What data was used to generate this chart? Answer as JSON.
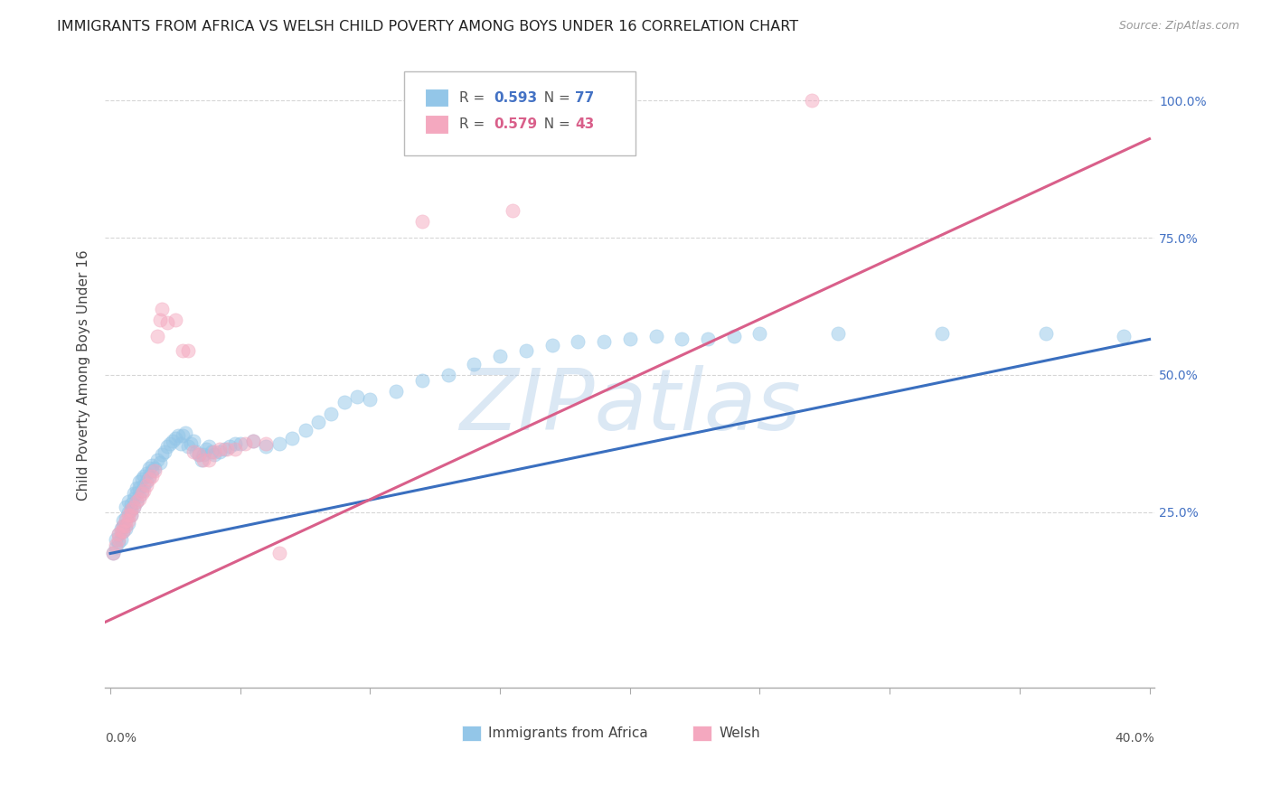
{
  "title": "IMMIGRANTS FROM AFRICA VS WELSH CHILD POVERTY AMONG BOYS UNDER 16 CORRELATION CHART",
  "source": "Source: ZipAtlas.com",
  "ylabel": "Child Poverty Among Boys Under 16",
  "ytick_labels": [
    "25.0%",
    "50.0%",
    "75.0%",
    "100.0%"
  ],
  "ytick_vals": [
    0.25,
    0.5,
    0.75,
    1.0
  ],
  "xlim": [
    -0.002,
    0.402
  ],
  "ylim": [
    -0.07,
    1.07
  ],
  "legend_blue_label": "Immigrants from Africa",
  "legend_pink_label": "Welsh",
  "blue_color": "#93c6e8",
  "pink_color": "#f4a8bf",
  "blue_line_color": "#3a6fbf",
  "pink_line_color": "#d95f8a",
  "blue_scatter": [
    [
      0.001,
      0.175
    ],
    [
      0.002,
      0.185
    ],
    [
      0.002,
      0.2
    ],
    [
      0.003,
      0.195
    ],
    [
      0.003,
      0.21
    ],
    [
      0.004,
      0.2
    ],
    [
      0.004,
      0.22
    ],
    [
      0.005,
      0.215
    ],
    [
      0.005,
      0.225
    ],
    [
      0.005,
      0.235
    ],
    [
      0.006,
      0.22
    ],
    [
      0.006,
      0.24
    ],
    [
      0.006,
      0.26
    ],
    [
      0.007,
      0.23
    ],
    [
      0.007,
      0.25
    ],
    [
      0.007,
      0.27
    ],
    [
      0.008,
      0.245
    ],
    [
      0.008,
      0.255
    ],
    [
      0.008,
      0.265
    ],
    [
      0.009,
      0.26
    ],
    [
      0.009,
      0.275
    ],
    [
      0.009,
      0.285
    ],
    [
      0.01,
      0.27
    ],
    [
      0.01,
      0.285
    ],
    [
      0.01,
      0.295
    ],
    [
      0.011,
      0.28
    ],
    [
      0.011,
      0.295
    ],
    [
      0.011,
      0.305
    ],
    [
      0.012,
      0.29
    ],
    [
      0.012,
      0.31
    ],
    [
      0.013,
      0.3
    ],
    [
      0.013,
      0.315
    ],
    [
      0.014,
      0.305
    ],
    [
      0.014,
      0.32
    ],
    [
      0.015,
      0.315
    ],
    [
      0.015,
      0.33
    ],
    [
      0.016,
      0.325
    ],
    [
      0.016,
      0.335
    ],
    [
      0.017,
      0.33
    ],
    [
      0.018,
      0.345
    ],
    [
      0.019,
      0.34
    ],
    [
      0.02,
      0.355
    ],
    [
      0.021,
      0.36
    ],
    [
      0.022,
      0.37
    ],
    [
      0.023,
      0.375
    ],
    [
      0.024,
      0.38
    ],
    [
      0.025,
      0.385
    ],
    [
      0.026,
      0.39
    ],
    [
      0.027,
      0.375
    ],
    [
      0.028,
      0.39
    ],
    [
      0.029,
      0.395
    ],
    [
      0.03,
      0.37
    ],
    [
      0.031,
      0.375
    ],
    [
      0.032,
      0.38
    ],
    [
      0.033,
      0.36
    ],
    [
      0.034,
      0.355
    ],
    [
      0.035,
      0.345
    ],
    [
      0.036,
      0.355
    ],
    [
      0.037,
      0.365
    ],
    [
      0.038,
      0.37
    ],
    [
      0.039,
      0.36
    ],
    [
      0.04,
      0.355
    ],
    [
      0.042,
      0.36
    ],
    [
      0.044,
      0.365
    ],
    [
      0.046,
      0.37
    ],
    [
      0.048,
      0.375
    ],
    [
      0.05,
      0.375
    ],
    [
      0.055,
      0.38
    ],
    [
      0.06,
      0.37
    ],
    [
      0.065,
      0.375
    ],
    [
      0.07,
      0.385
    ],
    [
      0.075,
      0.4
    ],
    [
      0.08,
      0.415
    ],
    [
      0.085,
      0.43
    ],
    [
      0.09,
      0.45
    ],
    [
      0.095,
      0.46
    ],
    [
      0.1,
      0.455
    ],
    [
      0.11,
      0.47
    ],
    [
      0.12,
      0.49
    ],
    [
      0.13,
      0.5
    ],
    [
      0.14,
      0.52
    ],
    [
      0.15,
      0.535
    ],
    [
      0.16,
      0.545
    ],
    [
      0.17,
      0.555
    ],
    [
      0.18,
      0.56
    ],
    [
      0.19,
      0.56
    ],
    [
      0.2,
      0.565
    ],
    [
      0.21,
      0.57
    ],
    [
      0.22,
      0.565
    ],
    [
      0.23,
      0.565
    ],
    [
      0.24,
      0.57
    ],
    [
      0.25,
      0.575
    ],
    [
      0.28,
      0.575
    ],
    [
      0.32,
      0.575
    ],
    [
      0.36,
      0.575
    ],
    [
      0.39,
      0.57
    ]
  ],
  "pink_scatter": [
    [
      0.001,
      0.175
    ],
    [
      0.002,
      0.19
    ],
    [
      0.003,
      0.2
    ],
    [
      0.003,
      0.21
    ],
    [
      0.004,
      0.215
    ],
    [
      0.005,
      0.215
    ],
    [
      0.005,
      0.225
    ],
    [
      0.006,
      0.225
    ],
    [
      0.006,
      0.235
    ],
    [
      0.007,
      0.235
    ],
    [
      0.007,
      0.245
    ],
    [
      0.008,
      0.245
    ],
    [
      0.008,
      0.255
    ],
    [
      0.009,
      0.26
    ],
    [
      0.01,
      0.27
    ],
    [
      0.011,
      0.275
    ],
    [
      0.012,
      0.285
    ],
    [
      0.013,
      0.29
    ],
    [
      0.014,
      0.3
    ],
    [
      0.015,
      0.31
    ],
    [
      0.016,
      0.315
    ],
    [
      0.017,
      0.325
    ],
    [
      0.018,
      0.57
    ],
    [
      0.019,
      0.6
    ],
    [
      0.02,
      0.62
    ],
    [
      0.022,
      0.595
    ],
    [
      0.025,
      0.6
    ],
    [
      0.028,
      0.545
    ],
    [
      0.03,
      0.545
    ],
    [
      0.032,
      0.36
    ],
    [
      0.034,
      0.355
    ],
    [
      0.036,
      0.345
    ],
    [
      0.038,
      0.345
    ],
    [
      0.04,
      0.36
    ],
    [
      0.042,
      0.365
    ],
    [
      0.045,
      0.365
    ],
    [
      0.048,
      0.365
    ],
    [
      0.052,
      0.375
    ],
    [
      0.055,
      0.38
    ],
    [
      0.06,
      0.375
    ],
    [
      0.065,
      0.175
    ],
    [
      0.12,
      0.78
    ],
    [
      0.155,
      0.8
    ],
    [
      0.27,
      1.0
    ]
  ],
  "blue_trendline": [
    [
      0.0,
      0.175
    ],
    [
      0.4,
      0.565
    ]
  ],
  "pink_trendline": [
    [
      -0.002,
      0.05
    ],
    [
      0.4,
      0.93
    ]
  ],
  "watermark_text": "ZIPatlas",
  "background_color": "#ffffff",
  "grid_color": "#cccccc"
}
